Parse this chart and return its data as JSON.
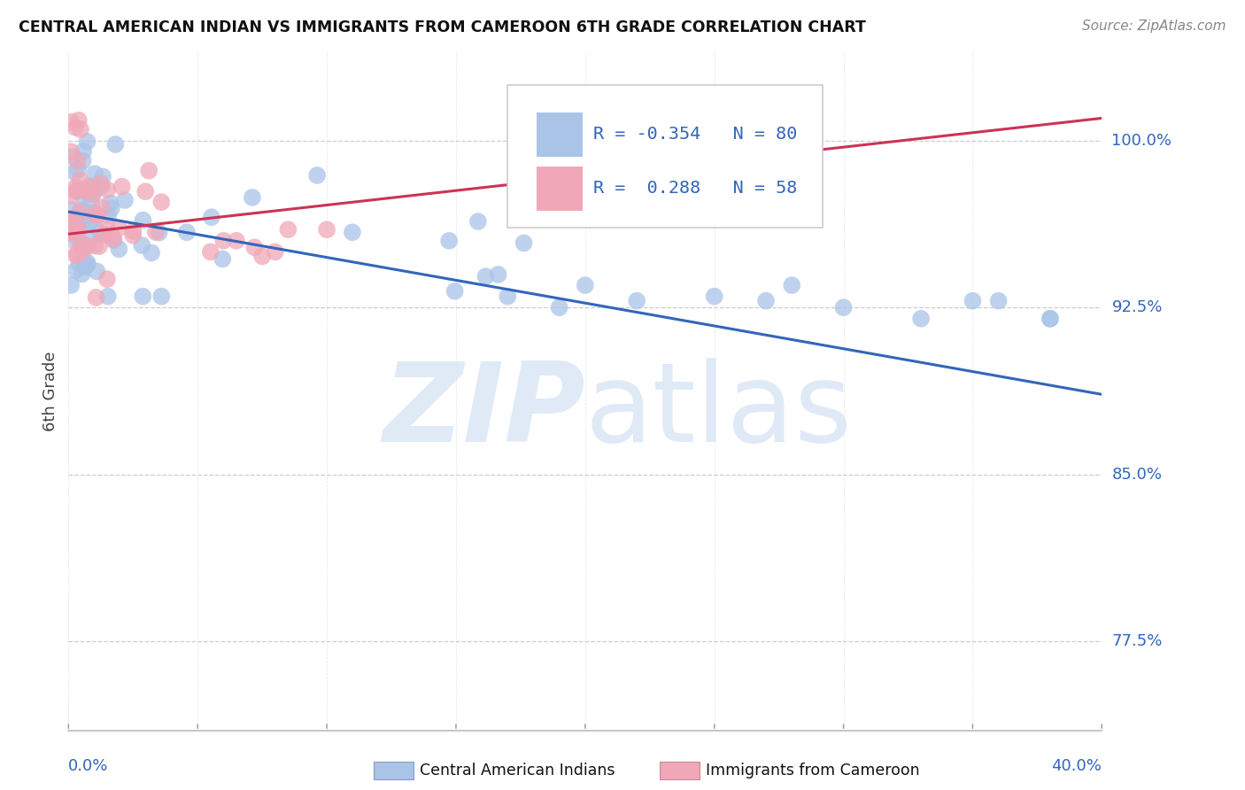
{
  "title": "CENTRAL AMERICAN INDIAN VS IMMIGRANTS FROM CAMEROON 6TH GRADE CORRELATION CHART",
  "source": "Source: ZipAtlas.com",
  "ylabel": "6th Grade",
  "yticks": [
    0.775,
    0.85,
    0.925,
    1.0
  ],
  "ytick_labels": [
    "77.5%",
    "85.0%",
    "92.5%",
    "100.0%"
  ],
  "xlim": [
    0.0,
    0.4
  ],
  "ylim": [
    0.735,
    1.04
  ],
  "R_blue": -0.354,
  "N_blue": 80,
  "R_pink": 0.288,
  "N_pink": 58,
  "blue_color": "#aac4e8",
  "pink_color": "#f0a8b8",
  "blue_line_color": "#3366bb",
  "pink_line_color": "#cc3355",
  "watermark_zip": "ZIP",
  "watermark_atlas": "atlas",
  "legend_label_blue": "Central American Indians",
  "legend_label_pink": "Immigrants from Cameroon",
  "blue_line_x0": 0.0,
  "blue_line_y0": 0.968,
  "blue_line_x1": 0.4,
  "blue_line_y1": 0.886,
  "pink_line_x0": 0.0,
  "pink_line_y0": 0.958,
  "pink_line_x1": 0.4,
  "pink_line_y1": 1.01
}
